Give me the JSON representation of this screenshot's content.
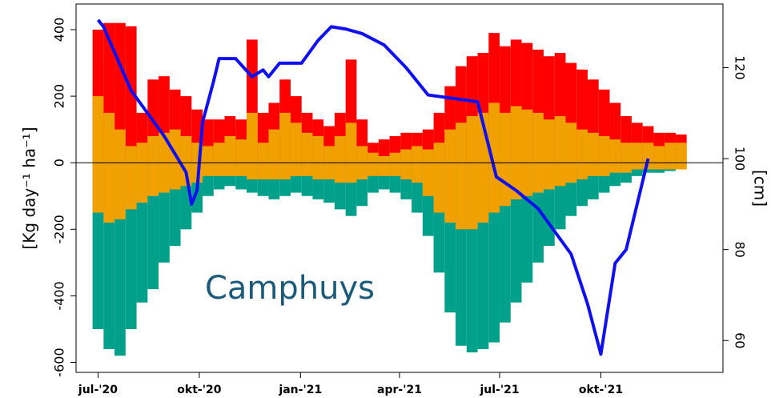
{
  "chart_data": {
    "type": "bar",
    "annotation": "Camphuys",
    "ylabel": "[Kg day⁻¹ ha⁻¹]",
    "y2label": "[cm]",
    "xlim": [
      -20,
      568
    ],
    "xticks": [
      {
        "value": 0,
        "label": "jul-'20"
      },
      {
        "value": 92,
        "label": "okt-'20"
      },
      {
        "value": 184,
        "label": "jan-'21"
      },
      {
        "value": 274,
        "label": "apr-'21"
      },
      {
        "value": 365,
        "label": "jul-'21"
      },
      {
        "value": 457,
        "label": "okt-'21"
      }
    ],
    "ylim": [
      -630,
      477
    ],
    "yticks": [
      -600,
      -400,
      -200,
      0,
      200,
      400
    ],
    "y2lim": [
      53,
      134
    ],
    "y2ticks": [
      60,
      80,
      100,
      120
    ],
    "x": [
      0,
      10,
      20,
      30,
      40,
      50,
      60,
      70,
      80,
      90,
      100,
      110,
      120,
      130,
      140,
      150,
      160,
      170,
      180,
      190,
      200,
      210,
      220,
      230,
      240,
      250,
      260,
      270,
      280,
      290,
      300,
      310,
      320,
      330,
      340,
      350,
      360,
      370,
      380,
      390,
      400,
      410,
      420,
      430,
      440,
      450,
      460,
      470,
      480,
      490,
      500,
      510,
      520,
      530
    ],
    "series": [
      {
        "color": "#ff0000",
        "values": [
          400,
          420,
          420,
          410,
          150,
          250,
          260,
          220,
          200,
          160,
          130,
          130,
          140,
          130,
          370,
          150,
          180,
          250,
          200,
          150,
          130,
          110,
          150,
          310,
          130,
          60,
          70,
          80,
          90,
          90,
          100,
          150,
          230,
          290,
          320,
          330,
          390,
          350,
          370,
          360,
          340,
          320,
          330,
          300,
          280,
          250,
          220,
          180,
          140,
          120,
          110,
          90,
          90,
          85
        ]
      },
      {
        "color": "#f0a000",
        "values": [
          200,
          150,
          100,
          50,
          60,
          80,
          90,
          100,
          80,
          60,
          50,
          60,
          80,
          70,
          150,
          60,
          100,
          150,
          120,
          90,
          80,
          50,
          80,
          120,
          50,
          30,
          20,
          30,
          40,
          50,
          40,
          60,
          100,
          120,
          140,
          150,
          180,
          150,
          170,
          160,
          150,
          130,
          140,
          120,
          100,
          90,
          80,
          70,
          60,
          60,
          60,
          50,
          60,
          60
        ]
      },
      {
        "color": "#00a08a",
        "values": [
          -500,
          -560,
          -580,
          -500,
          -420,
          -380,
          -300,
          -250,
          -200,
          -150,
          -100,
          -80,
          -70,
          -80,
          -90,
          -100,
          -110,
          -100,
          -90,
          -100,
          -110,
          -120,
          -140,
          -160,
          -130,
          -90,
          -80,
          -90,
          -110,
          -150,
          -220,
          -330,
          -450,
          -550,
          -570,
          -560,
          -540,
          -480,
          -420,
          -360,
          -300,
          -250,
          -200,
          -160,
          -130,
          -110,
          -90,
          -70,
          -60,
          -40,
          -30,
          -30,
          -25,
          -20
        ]
      },
      {
        "color": "#f0a000",
        "values": [
          -150,
          -180,
          -170,
          -140,
          -120,
          -100,
          -90,
          -80,
          -70,
          -60,
          -40,
          -40,
          -40,
          -40,
          -50,
          -50,
          -50,
          -50,
          -40,
          -40,
          -50,
          -50,
          -60,
          -60,
          -50,
          -40,
          -40,
          -40,
          -50,
          -60,
          -100,
          -150,
          -180,
          -200,
          -200,
          -180,
          -150,
          -130,
          -110,
          -100,
          -90,
          -80,
          -70,
          -60,
          -50,
          -40,
          -40,
          -30,
          -30,
          -20,
          -20,
          -20,
          -20,
          -20
        ]
      },
      {
        "type": "line",
        "axis": "y2",
        "color": "#1010ee",
        "x": [
          0,
          5,
          30,
          60,
          80,
          85,
          90,
          95,
          105,
          110,
          125,
          140,
          150,
          155,
          165,
          185,
          200,
          212,
          225,
          240,
          260,
          280,
          300,
          330,
          345,
          362,
          380,
          400,
          430,
          445,
          457,
          470,
          480,
          490,
          500
        ],
        "values": [
          130.5,
          129,
          115,
          105,
          97,
          90,
          93,
          108,
          117,
          122,
          122,
          118,
          119.5,
          118,
          121,
          121,
          126,
          129,
          128.5,
          127.5,
          125,
          120,
          114,
          113,
          112.5,
          96,
          93,
          89,
          79,
          68,
          57,
          77,
          80,
          90,
          100
        ]
      }
    ]
  }
}
